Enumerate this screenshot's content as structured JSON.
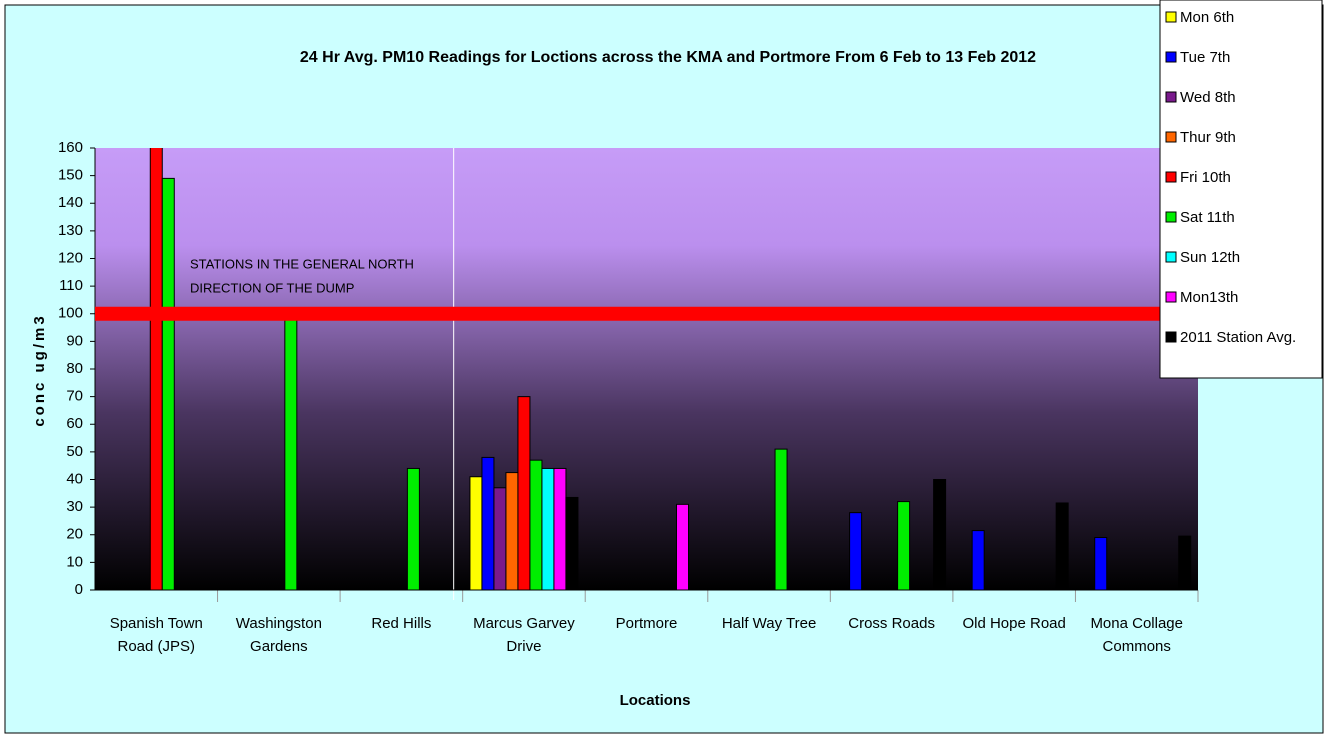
{
  "chart_data": {
    "type": "bar",
    "title": "24 Hr Avg. PM10 Readings for Loctions across the KMA and Portmore From 6 Feb to 13 Feb 2012",
    "x_label": "Locations",
    "y_label": "conc ug/m3",
    "annotation_lines": [
      "STATIONS IN THE GENERAL NORTH",
      "DIRECTION OF THE DUMP"
    ],
    "threshold": 100,
    "threshold_color": "#ff0000",
    "categories": [
      "Spanish Town\nRoad (JPS)",
      "Washingston\nGardens",
      "Red Hills",
      "Marcus Garvey\nDrive",
      "Portmore",
      "Half Way Tree",
      "Cross Roads",
      "Old Hope Road",
      "Mona Collage\nCommons"
    ],
    "series": [
      {
        "name": "Mon 6th",
        "color": "#ffff00",
        "values": [
          null,
          null,
          null,
          41,
          null,
          null,
          null,
          null,
          null
        ]
      },
      {
        "name": "Tue 7th",
        "color": "#0000ff",
        "values": [
          null,
          null,
          null,
          48,
          null,
          null,
          28,
          21.5,
          19
        ]
      },
      {
        "name": "Wed 8th",
        "color": "#7a1a8c",
        "values": [
          null,
          null,
          null,
          37,
          null,
          null,
          null,
          null,
          null
        ]
      },
      {
        "name": "Thur 9th",
        "color": "#ff6600",
        "values": [
          null,
          null,
          null,
          42.5,
          null,
          null,
          null,
          null,
          null
        ]
      },
      {
        "name": "Fri 10th",
        "color": "#ff0000",
        "values": [
          161,
          null,
          null,
          70,
          null,
          null,
          null,
          null,
          null
        ]
      },
      {
        "name": "Sat 11th",
        "color": "#00ee00",
        "values": [
          149,
          98,
          44,
          47,
          null,
          51,
          32,
          null,
          null
        ]
      },
      {
        "name": "Sun 12th",
        "color": "#00ffff",
        "values": [
          null,
          null,
          null,
          44,
          null,
          null,
          null,
          null,
          null
        ]
      },
      {
        "name": "Mon13th",
        "color": "#ff00ff",
        "values": [
          null,
          null,
          null,
          44,
          31,
          null,
          null,
          null,
          null
        ]
      },
      {
        "name": "2011 Station Avg.",
        "color": "#000000",
        "values": [
          null,
          null,
          null,
          33.5,
          null,
          null,
          40,
          31.5,
          19.5
        ]
      }
    ],
    "ylim": [
      0,
      160
    ],
    "yticks": [
      0,
      10,
      20,
      30,
      40,
      50,
      60,
      70,
      80,
      90,
      100,
      110,
      120,
      130,
      140,
      150,
      160
    ],
    "legend": "right"
  }
}
